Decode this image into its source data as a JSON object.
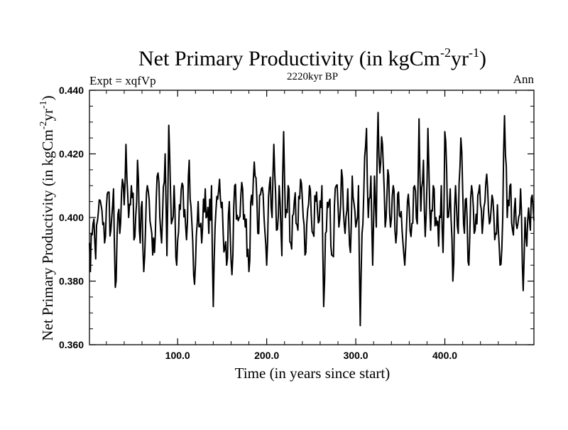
{
  "chart_data": {
    "type": "line",
    "title": {
      "main": "Net Primary Productivity (in kgCm",
      "exp1": "-2",
      "mid": "yr",
      "exp2": "-1",
      "end": ")"
    },
    "subtitle_left": "Expt = xqfVp",
    "subtitle_center": "2220kyr BP",
    "subtitle_right": "Ann",
    "xlabel": "Time (in years since start)",
    "ylabel": {
      "main": "Net Primary Productivity (in kgCm",
      "exp1": "-2",
      "mid": "yr",
      "exp2": "-1",
      "end": ")"
    },
    "xlim": [
      1,
      500
    ],
    "ylim": [
      0.36,
      0.44
    ],
    "x_ticks": [
      {
        "v": 100,
        "label": "100.0"
      },
      {
        "v": 200,
        "label": "200.0"
      },
      {
        "v": 300,
        "label": "300.0"
      },
      {
        "v": 400,
        "label": "400.0"
      }
    ],
    "y_ticks": [
      {
        "v": 0.36,
        "label": "0.360"
      },
      {
        "v": 0.38,
        "label": "0.380"
      },
      {
        "v": 0.4,
        "label": "0.400"
      },
      {
        "v": 0.42,
        "label": "0.420"
      },
      {
        "v": 0.44,
        "label": "0.440"
      }
    ],
    "series": [
      {
        "name": "Net Primary Productivity",
        "x_start": 1,
        "x_step": 1,
        "anchors": [
          [
            1,
            0.392
          ],
          [
            2,
            0.383
          ],
          [
            3,
            0.395
          ],
          [
            5,
            0.398
          ],
          [
            8,
            0.387
          ],
          [
            10,
            0.399
          ],
          [
            14,
            0.404
          ],
          [
            18,
            0.392
          ],
          [
            22,
            0.408
          ],
          [
            25,
            0.396
          ],
          [
            28,
            0.409
          ],
          [
            30,
            0.378
          ],
          [
            33,
            0.401
          ],
          [
            35,
            0.395
          ],
          [
            38,
            0.412
          ],
          [
            40,
            0.404
          ],
          [
            42,
            0.423
          ],
          [
            45,
            0.4
          ],
          [
            48,
            0.41
          ],
          [
            52,
            0.394
          ],
          [
            55,
            0.418
          ],
          [
            58,
            0.392
          ],
          [
            60,
            0.405
          ],
          [
            62,
            0.383
          ],
          [
            66,
            0.41
          ],
          [
            70,
            0.397
          ],
          [
            74,
            0.389
          ],
          [
            78,
            0.414
          ],
          [
            82,
            0.392
          ],
          [
            86,
            0.42
          ],
          [
            88,
            0.388
          ],
          [
            90,
            0.429
          ],
          [
            93,
            0.398
          ],
          [
            96,
            0.41
          ],
          [
            99,
            0.385
          ],
          [
            102,
            0.404
          ],
          [
            106,
            0.41
          ],
          [
            110,
            0.393
          ],
          [
            113,
            0.418
          ],
          [
            116,
            0.398
          ],
          [
            119,
            0.379
          ],
          [
            123,
            0.405
          ],
          [
            127,
            0.392
          ],
          [
            131,
            0.409
          ],
          [
            135,
            0.395
          ],
          [
            138,
            0.41
          ],
          [
            140,
            0.372
          ],
          [
            143,
            0.402
          ],
          [
            147,
            0.412
          ],
          [
            151,
            0.396
          ],
          [
            155,
            0.385
          ],
          [
            158,
            0.405
          ],
          [
            161,
            0.382
          ],
          [
            164,
            0.41
          ],
          [
            168,
            0.399
          ],
          [
            172,
            0.411
          ],
          [
            176,
            0.397
          ],
          [
            180,
            0.383
          ],
          [
            183,
            0.407
          ],
          [
            187,
            0.413
          ],
          [
            190,
            0.395
          ],
          [
            194,
            0.409
          ],
          [
            197,
            0.4
          ],
          [
            200,
            0.385
          ],
          [
            203,
            0.41
          ],
          [
            206,
            0.4
          ],
          [
            208,
            0.423
          ],
          [
            211,
            0.396
          ],
          [
            214,
            0.41
          ],
          [
            217,
            0.388
          ],
          [
            219,
            0.427
          ],
          [
            221,
            0.4
          ],
          [
            224,
            0.41
          ],
          [
            227,
            0.392
          ],
          [
            231,
            0.405
          ],
          [
            235,
            0.396
          ],
          [
            238,
            0.412
          ],
          [
            241,
            0.4
          ],
          [
            244,
            0.389
          ],
          [
            248,
            0.41
          ],
          [
            252,
            0.395
          ],
          [
            256,
            0.408
          ],
          [
            259,
            0.399
          ],
          [
            262,
            0.41
          ],
          [
            264,
            0.372
          ],
          [
            266,
            0.395
          ],
          [
            270,
            0.405
          ],
          [
            274,
            0.388
          ],
          [
            278,
            0.41
          ],
          [
            281,
            0.397
          ],
          [
            284,
            0.415
          ],
          [
            288,
            0.395
          ],
          [
            291,
            0.409
          ],
          [
            294,
            0.389
          ],
          [
            296,
            0.413
          ],
          [
            300,
            0.397
          ],
          [
            303,
            0.41
          ],
          [
            305,
            0.366
          ],
          [
            307,
            0.395
          ],
          [
            310,
            0.419
          ],
          [
            312,
            0.428
          ],
          [
            314,
            0.4
          ],
          [
            317,
            0.413
          ],
          [
            319,
            0.385
          ],
          [
            321,
            0.413
          ],
          [
            323,
            0.397
          ],
          [
            325,
            0.433
          ],
          [
            327,
            0.414
          ],
          [
            330,
            0.423
          ],
          [
            333,
            0.397
          ],
          [
            336,
            0.415
          ],
          [
            339,
            0.397
          ],
          [
            342,
            0.41
          ],
          [
            345,
            0.392
          ],
          [
            348,
            0.408
          ],
          [
            352,
            0.396
          ],
          [
            355,
            0.385
          ],
          [
            358,
            0.405
          ],
          [
            362,
            0.394
          ],
          [
            366,
            0.41
          ],
          [
            369,
            0.398
          ],
          [
            371,
            0.431
          ],
          [
            373,
            0.402
          ],
          [
            376,
            0.418
          ],
          [
            378,
            0.394
          ],
          [
            381,
            0.428
          ],
          [
            384,
            0.396
          ],
          [
            387,
            0.41
          ],
          [
            390,
            0.4
          ],
          [
            393,
            0.391
          ],
          [
            396,
            0.41
          ],
          [
            398,
            0.389
          ],
          [
            400,
            0.427
          ],
          [
            403,
            0.4
          ],
          [
            406,
            0.409
          ],
          [
            409,
            0.38
          ],
          [
            412,
            0.41
          ],
          [
            415,
            0.395
          ],
          [
            418,
            0.425
          ],
          [
            421,
            0.398
          ],
          [
            424,
            0.406
          ],
          [
            427,
            0.385
          ],
          [
            430,
            0.41
          ],
          [
            434,
            0.396
          ],
          [
            438,
            0.408
          ],
          [
            442,
            0.395
          ],
          [
            446,
            0.411
          ],
          [
            450,
            0.398
          ],
          [
            453,
            0.407
          ],
          [
            456,
            0.393
          ],
          [
            459,
            0.404
          ],
          [
            462,
            0.385
          ],
          [
            465,
            0.4
          ],
          [
            467,
            0.432
          ],
          [
            470,
            0.4
          ],
          [
            473,
            0.41
          ],
          [
            476,
            0.396
          ],
          [
            479,
            0.406
          ],
          [
            482,
            0.398
          ],
          [
            485,
            0.409
          ],
          [
            488,
            0.377
          ],
          [
            490,
            0.4
          ],
          [
            492,
            0.391
          ],
          [
            494,
            0.403
          ],
          [
            496,
            0.396
          ],
          [
            498,
            0.407
          ],
          [
            500,
            0.399
          ]
        ]
      }
    ]
  }
}
